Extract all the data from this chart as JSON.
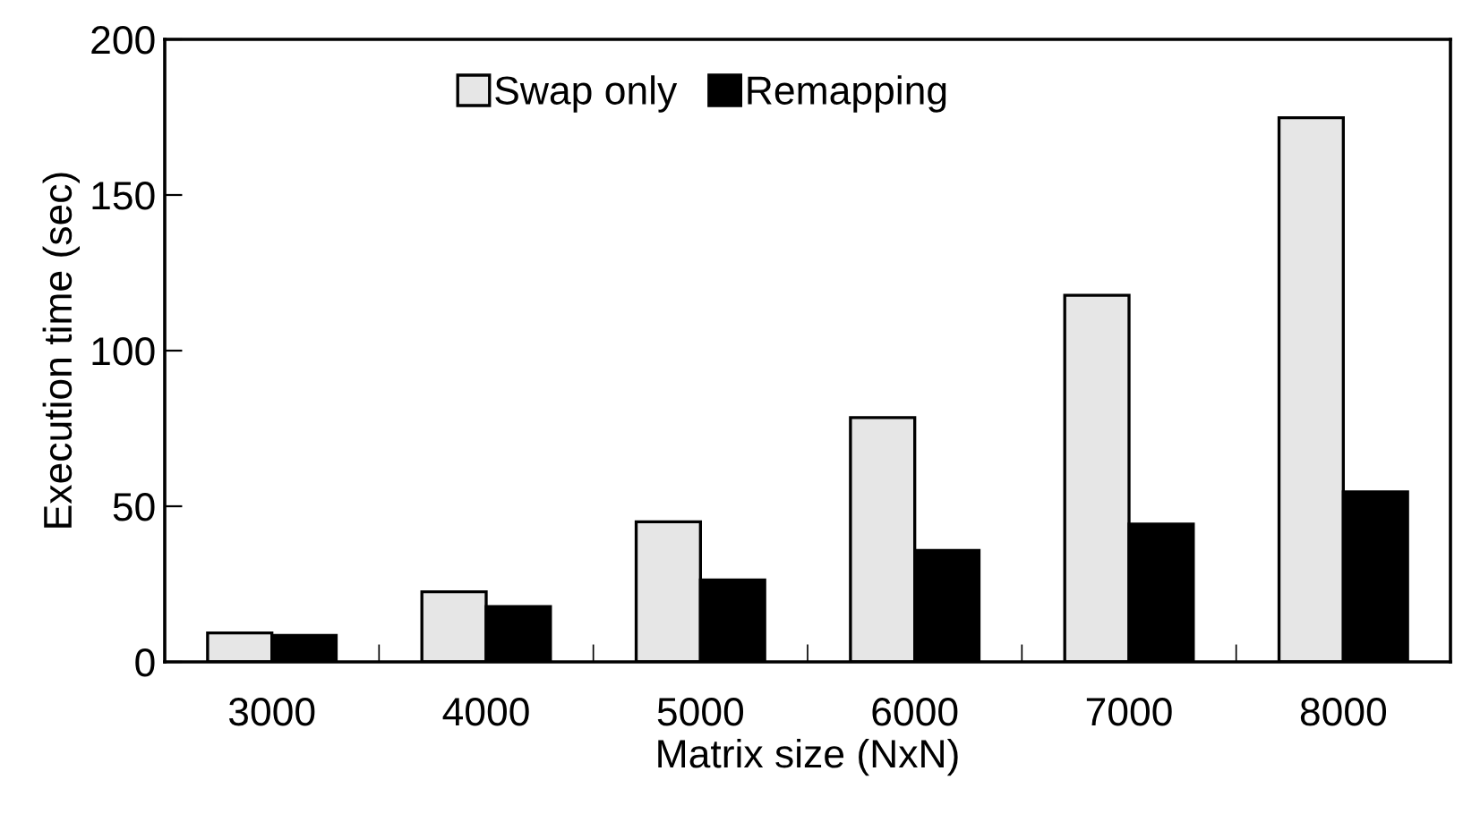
{
  "chart_data": {
    "type": "bar",
    "xlabel": "Matrix size (NxN)",
    "ylabel": "Execution time (sec)",
    "categories": [
      "3000",
      "4000",
      "5000",
      "6000",
      "7000",
      "8000"
    ],
    "series": [
      {
        "name": "Swap only",
        "color": "#e6e6e6",
        "values": [
          9.3,
          22.5,
          45,
          78.5,
          117.8,
          174.8
        ]
      },
      {
        "name": "Remapping",
        "color": "#000000",
        "values": [
          8.5,
          17.8,
          26.3,
          35.8,
          44.3,
          54.6
        ]
      }
    ],
    "ylim": [
      0,
      200
    ],
    "yticks": [
      0,
      50,
      100,
      150,
      200
    ],
    "grid": false,
    "legend": "top left"
  }
}
